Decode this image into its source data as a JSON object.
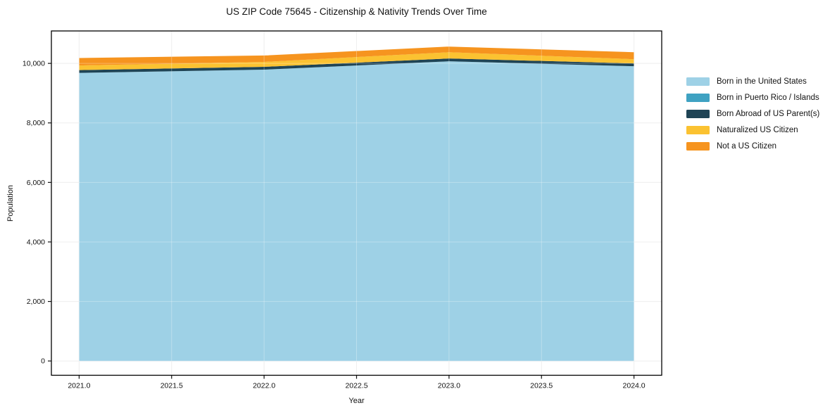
{
  "chart_data": {
    "type": "area",
    "stacked": true,
    "title": "US ZIP Code 75645 - Citizenship & Nativity Trends Over Time",
    "xlabel": "Year",
    "ylabel": "Population",
    "x": [
      2021,
      2022,
      2023,
      2024
    ],
    "series": [
      {
        "name": "Born in the United States",
        "color": "#9ed1e6",
        "values": [
          9680,
          9790,
          10070,
          9905
        ]
      },
      {
        "name": "Born in Puerto Rico / Islands",
        "color": "#3fa2c2",
        "values": [
          0,
          0,
          0,
          0
        ]
      },
      {
        "name": "Born Abroad of US Parent(s)",
        "color": "#1f4455",
        "values": [
          95,
          95,
          95,
          95
        ]
      },
      {
        "name": "Naturalized US Citizen",
        "color": "#fbc231",
        "values": [
          155,
          165,
          210,
          140
        ]
      },
      {
        "name": "Not a US Citizen",
        "color": "#f6941f",
        "values": [
          250,
          215,
          190,
          235
        ]
      }
    ],
    "totals": [
      10180,
      10265,
      10565,
      10375
    ],
    "xlim": [
      2020.85,
      2024.15
    ],
    "ylim": [
      -480,
      11090
    ],
    "xticks": [
      2021.0,
      2021.5,
      2022.0,
      2022.5,
      2023.0,
      2023.5,
      2024.0
    ],
    "xtick_labels": [
      "2021.0",
      "2021.5",
      "2022.0",
      "2022.5",
      "2023.0",
      "2023.5",
      "2024.0"
    ],
    "yticks": [
      0,
      2000,
      4000,
      6000,
      8000,
      10000
    ],
    "ytick_labels": [
      "0",
      "2,000",
      "4,000",
      "6,000",
      "8,000",
      "10,000"
    ],
    "grid": true,
    "legend_position": "right-outside",
    "colors": {
      "background": "#ffffff",
      "grid_under": "#e9e9e9",
      "grid_over": "rgba(255,255,255,0.3)",
      "frame": "#000000",
      "tick": "#111111",
      "text": "#111111"
    }
  }
}
